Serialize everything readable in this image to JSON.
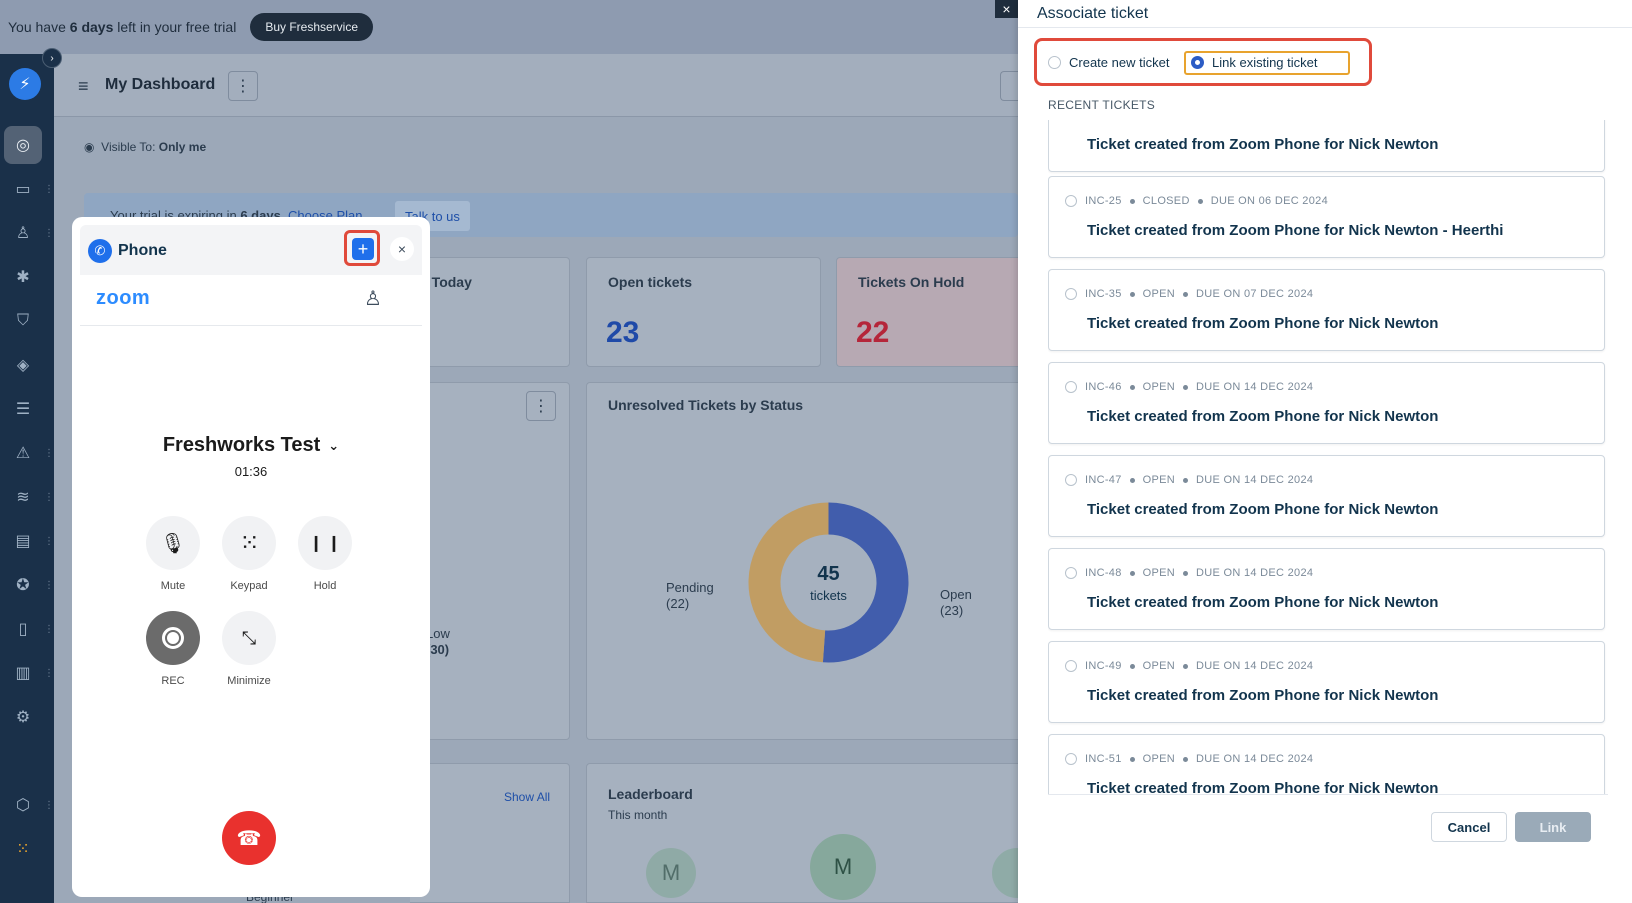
{
  "trial_bar": {
    "prefix": "You have",
    "days": "6 days",
    "suffix": "left in your free trial",
    "buy_label": "Buy Freshservice"
  },
  "sidebar": {
    "toggle_icon": "chevron-right-icon",
    "items": [
      {
        "name": "dashboard",
        "icon": "dashboard-icon",
        "active": true
      },
      {
        "name": "tickets",
        "icon": "ticket-icon"
      },
      {
        "name": "people",
        "icon": "people-icon"
      },
      {
        "name": "problems",
        "icon": "bug-icon"
      },
      {
        "name": "changes",
        "icon": "shield-icon"
      },
      {
        "name": "releases",
        "icon": "rocket-icon"
      },
      {
        "name": "tasks",
        "icon": "checklist-icon"
      },
      {
        "name": "alerts",
        "icon": "warning-icon"
      },
      {
        "name": "assets",
        "icon": "layers-icon"
      },
      {
        "name": "contracts",
        "icon": "document-icon"
      },
      {
        "name": "admin",
        "icon": "support-icon"
      },
      {
        "name": "solutions",
        "icon": "book-icon"
      },
      {
        "name": "analytics",
        "icon": "chart-icon"
      },
      {
        "name": "settings",
        "icon": "gear-icon"
      },
      {
        "name": "apps",
        "icon": "cube-icon"
      },
      {
        "name": "app-switcher",
        "icon": "grid-icon"
      }
    ]
  },
  "dashboard": {
    "title": "My Dashboard",
    "visible_to_label": "Visible To:",
    "visible_to_value": "Only me",
    "banner_prefix": "Your trial is expiring in",
    "banner_days": "6 days",
    "banner_link": "Choose Plan",
    "banner_button": "Talk to us",
    "cards": {
      "due_today_title": "e Today",
      "open_title": "Open tickets",
      "open_value": "23",
      "hold_title": "Tickets On Hold",
      "hold_value": "22",
      "unresolved_title": "Unresolved Tickets by Status",
      "low_label": "Low",
      "low_value": "(30)",
      "show_all": "Show All",
      "leaderboard_title": "Leaderboard",
      "leaderboard_sub": "This month",
      "beginner_label": "Beginner",
      "avatar_letter": "M"
    },
    "chart_data": {
      "type": "pie",
      "title": "Unresolved Tickets by Status",
      "center_value": "45",
      "center_label": "tickets",
      "categories": [
        "Open",
        "Pending"
      ],
      "values": [
        23,
        22
      ],
      "labels": [
        "Open (23)",
        "Pending (22)"
      ],
      "colors": [
        "#2f4fa8",
        "#c69a52"
      ]
    }
  },
  "phone": {
    "title": "Phone",
    "brand": "zoom",
    "caller": "Freshworks Test",
    "timer": "01:36",
    "controls": {
      "mute": "Mute",
      "keypad": "Keypad",
      "hold": "Hold",
      "rec": "REC",
      "minimize": "Minimize"
    }
  },
  "panel": {
    "title": "Associate ticket",
    "option_new": "Create new ticket",
    "option_existing": "Link existing ticket",
    "selected": "existing",
    "section_label": "RECENT TICKETS",
    "tickets": [
      {
        "id": "",
        "status": "",
        "due": "",
        "subject": "Ticket created from Zoom Phone for Nick Newton"
      },
      {
        "id": "INC-25",
        "status": "CLOSED",
        "due": "DUE ON 06 DEC 2024",
        "subject": "Ticket created from Zoom Phone for Nick Newton - Heerthi"
      },
      {
        "id": "INC-35",
        "status": "OPEN",
        "due": "DUE ON 07 DEC 2024",
        "subject": "Ticket created from Zoom Phone for Nick Newton"
      },
      {
        "id": "INC-46",
        "status": "OPEN",
        "due": "DUE ON 14 DEC 2024",
        "subject": "Ticket created from Zoom Phone for Nick Newton"
      },
      {
        "id": "INC-47",
        "status": "OPEN",
        "due": "DUE ON 14 DEC 2024",
        "subject": "Ticket created from Zoom Phone for Nick Newton"
      },
      {
        "id": "INC-48",
        "status": "OPEN",
        "due": "DUE ON 14 DEC 2024",
        "subject": "Ticket created from Zoom Phone for Nick Newton"
      },
      {
        "id": "INC-49",
        "status": "OPEN",
        "due": "DUE ON 14 DEC 2024",
        "subject": "Ticket created from Zoom Phone for Nick Newton"
      },
      {
        "id": "INC-51",
        "status": "OPEN",
        "due": "DUE ON 14 DEC 2024",
        "subject": "Ticket created from Zoom Phone for Nick Newton"
      }
    ],
    "cancel_label": "Cancel",
    "link_label": "Link"
  }
}
